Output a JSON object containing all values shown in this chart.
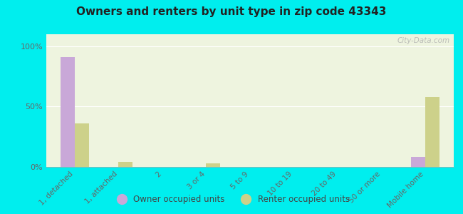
{
  "title": "Owners and renters by unit type in zip code 43343",
  "categories": [
    "1, detached",
    "1, attached",
    "2",
    "3 or 4",
    "5 to 9",
    "10 to 19",
    "20 to 49",
    "50 or more",
    "Mobile home"
  ],
  "owner_values": [
    91,
    0,
    0,
    0,
    0,
    0,
    0,
    0,
    8
  ],
  "renter_values": [
    36,
    4,
    0,
    3,
    0,
    0,
    0,
    0,
    58
  ],
  "owner_color": "#c9a8d8",
  "renter_color": "#cdd18a",
  "background_color": "#00eeee",
  "plot_bg": "#eef4df",
  "yticks": [
    0,
    50,
    100
  ],
  "ylim": [
    0,
    110
  ],
  "bar_width": 0.32,
  "legend_owner": "Owner occupied units",
  "legend_renter": "Renter occupied units",
  "watermark": "City-Data.com",
  "title_color": "#222222",
  "tick_color": "#666666"
}
